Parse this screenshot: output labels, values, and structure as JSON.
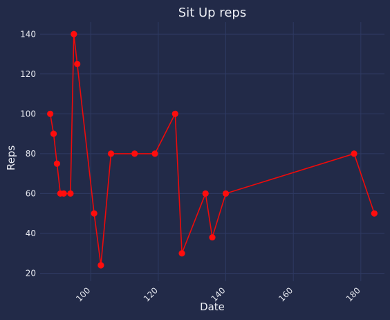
{
  "chart_data": {
    "type": "line",
    "title": "Sit Up reps",
    "xlabel": "Date",
    "ylabel": "Reps",
    "xlim": [
      85,
      187
    ],
    "ylim": [
      16,
      146
    ],
    "xticks": [
      100,
      120,
      140,
      160,
      180
    ],
    "yticks": [
      20,
      40,
      60,
      80,
      100,
      120,
      140
    ],
    "grid": true,
    "colors": {
      "background": "#222a48",
      "line": "#ee0a0a",
      "marker": "#ff0d0d",
      "grid": "#2f3a63"
    },
    "series": [
      {
        "x": [
          88,
          89,
          90,
          91,
          92,
          94,
          95,
          96,
          101,
          103,
          106,
          113,
          119,
          125,
          127,
          134,
          136,
          140,
          178,
          184
        ],
        "y": [
          100,
          90,
          75,
          60,
          60,
          60,
          140,
          125,
          50,
          24,
          80,
          80,
          80,
          100,
          30,
          60,
          38,
          60,
          80,
          50
        ]
      }
    ]
  }
}
